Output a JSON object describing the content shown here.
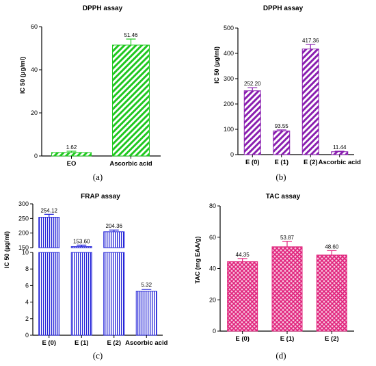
{
  "chart_data": [
    {
      "panel": "(a)",
      "type": "bar",
      "title": "DPPH assay",
      "ylabel": "IC 50 (μg/ml)",
      "ylim": [
        0,
        60
      ],
      "yticks": [
        "0",
        "20",
        "40",
        "60"
      ],
      "categories": [
        "EO",
        "Ascorbic acid"
      ],
      "values": [
        1.62,
        51.46
      ],
      "errors": [
        0.6,
        2.8
      ],
      "data_labels": [
        "1.62",
        "51.46"
      ],
      "color": "#1fc81f",
      "pattern": "diagonal-hatch"
    },
    {
      "panel": "(b)",
      "type": "bar",
      "title": "DPPH assay",
      "ylabel": "IC 50 (μg/ml)",
      "ylim": [
        0,
        500
      ],
      "yticks": [
        "0",
        "100",
        "200",
        "300",
        "400",
        "500"
      ],
      "categories": [
        "E (0)",
        "E (1)",
        "E (2)",
        "Ascorbic acid"
      ],
      "values": [
        252.2,
        93.55,
        417.36,
        11.44
      ],
      "errors": [
        12,
        4,
        18,
        2
      ],
      "data_labels": [
        "252.20",
        "93.55",
        "417.36",
        "11.44"
      ],
      "color": "#8a1fb0",
      "pattern": "diagonal-hatch"
    },
    {
      "panel": "(c)",
      "type": "bar",
      "title": "FRAP assay",
      "ylabel": "IC 50 (μg/ml)",
      "axis_break": true,
      "upper_ylim": [
        150,
        300
      ],
      "upper_yticks": [
        "150",
        "200",
        "250",
        "300"
      ],
      "lower_ylim": [
        0,
        10
      ],
      "lower_yticks": [
        "0",
        "2",
        "4",
        "6",
        "8",
        "10"
      ],
      "categories": [
        "E (0)",
        "E (1)",
        "E (2)",
        "Ascorbic acid"
      ],
      "values": [
        254.12,
        153.6,
        204.36,
        5.32
      ],
      "errors": [
        10,
        5,
        6,
        0.2
      ],
      "data_labels": [
        "254.12",
        "153.60",
        "204.36",
        "5.32"
      ],
      "color": "#2424d8",
      "pattern": "vertical-lines"
    },
    {
      "panel": "(d)",
      "type": "bar",
      "title": "TAC assay",
      "ylabel": "TAC (mg EAA/g)",
      "ylim": [
        0,
        80
      ],
      "yticks": [
        "0",
        "20",
        "40",
        "60",
        "80"
      ],
      "categories": [
        "E (0)",
        "E (1)",
        "E (2)"
      ],
      "values": [
        44.35,
        53.87,
        48.6
      ],
      "errors": [
        2,
        3.5,
        2.8
      ],
      "data_labels": [
        "44.35",
        "53.87",
        "48.60"
      ],
      "color": "#e0207a",
      "pattern": "crosshatch"
    }
  ],
  "panel_labels": [
    "(a)",
    "(b)",
    "(c)",
    "(d)"
  ]
}
